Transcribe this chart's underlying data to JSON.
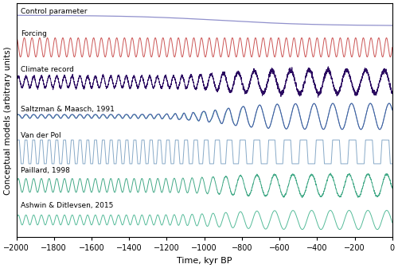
{
  "t_start": -2000,
  "t_end": 0,
  "n_points": 10000,
  "control_color": "#9090cc",
  "forcing_color": "#cc5555",
  "climate_color": "#2a0a60",
  "saltzman_nof_color": "#50a898",
  "saltzman_f_color": "#4455aa",
  "vdp_color": "#88aac8",
  "paillard_color": "#44aa88",
  "ashwin_color": "#55bb99",
  "xlabel": "Time, kyr BP",
  "ylabel": "Conceptual models (arbitrary units)",
  "xlim": [
    -2000,
    0
  ],
  "ylim": [
    -3.0,
    9.2
  ],
  "label_control": "Control parameter",
  "label_forcing": "Forcing",
  "label_climate": "Climate record",
  "label_saltzman": "Saltzman & Maasch, 1991",
  "label_vdp": "Van der Pol",
  "label_paillard": "Paillard, 1998",
  "label_ashwin": "Ashwin & Ditlevsen, 2015",
  "mpt": -900,
  "obliquity_period": 41,
  "offsets": {
    "control": 8.3,
    "forcing": 6.9,
    "climate": 5.1,
    "saltzman": 3.3,
    "vdp": 1.45,
    "paillard": -0.3,
    "ashwin": -2.1
  },
  "lw_control": 0.9,
  "lw_forcing": 0.7,
  "lw_climate": 0.6,
  "lw_saltzman": 0.7,
  "lw_vdp": 0.7,
  "lw_paillard": 0.7,
  "lw_ashwin": 0.7,
  "label_fontsize": 6.5,
  "xlabel_fontsize": 8.0,
  "ylabel_fontsize": 7.5,
  "tick_fontsize": 7.0
}
